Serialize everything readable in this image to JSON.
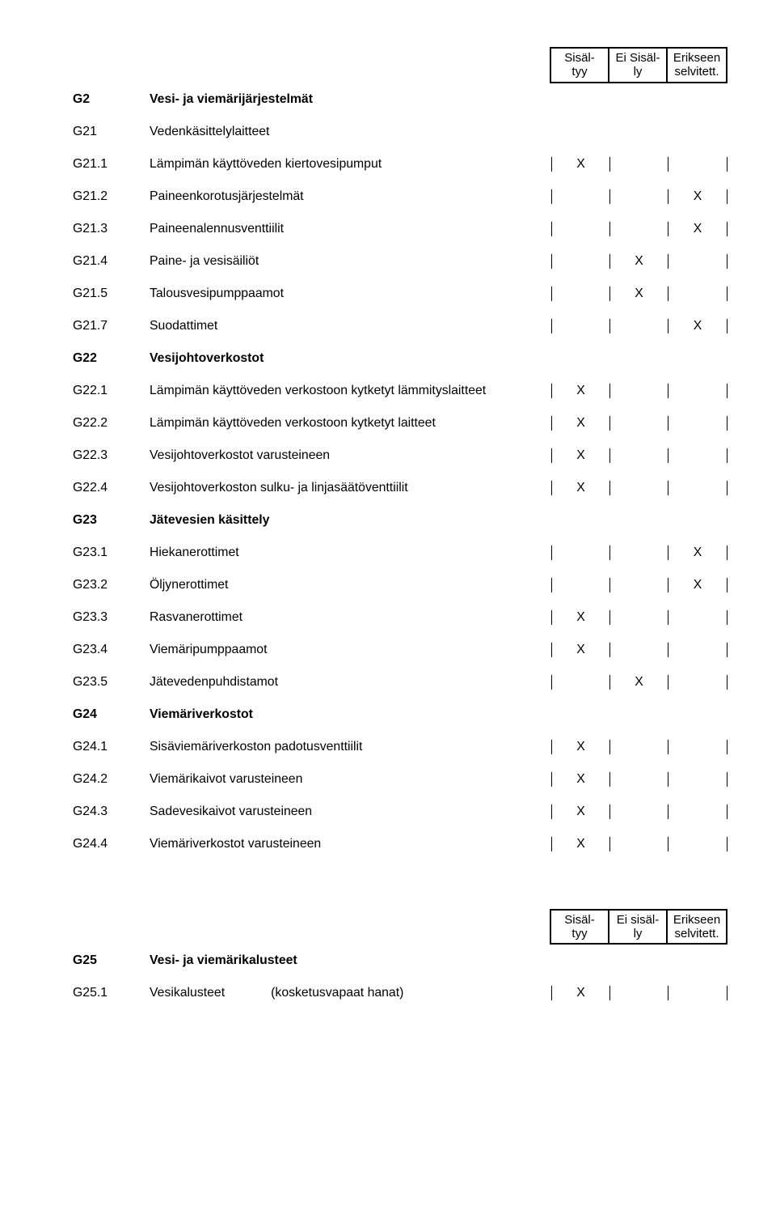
{
  "header": {
    "col1_line1": "Sisäl-",
    "col1_line2": "tyy",
    "col2_line1": "Ei Sisäl-",
    "col2_line2": "ly",
    "col3_line1": "Erikseen",
    "col3_line2": "selvitett."
  },
  "rows": [
    {
      "code": "G2",
      "label": "Vesi- ja viemärijärjestelmät",
      "bold": true,
      "c1": "",
      "c2": "",
      "c3": ""
    },
    {
      "code": "G21",
      "label": "Vedenkäsittelylaitteet",
      "bold": false,
      "c1": "",
      "c2": "",
      "c3": ""
    },
    {
      "code": "G21.1",
      "label": "Lämpimän käyttöveden kiertovesipumput",
      "bold": false,
      "c1": "X",
      "c2": "",
      "c3": ""
    },
    {
      "code": "G21.2",
      "label": "Paineenkorotusjärjestelmät",
      "bold": false,
      "c1": "",
      "c2": "",
      "c3": "X"
    },
    {
      "code": "G21.3",
      "label": "Paineenalennusventtiilit",
      "bold": false,
      "c1": "",
      "c2": "",
      "c3": "X"
    },
    {
      "code": "G21.4",
      "label": "Paine- ja vesisäiliöt",
      "bold": false,
      "c1": "",
      "c2": "X",
      "c3": ""
    },
    {
      "code": "G21.5",
      "label": "Talousvesipumppaamot",
      "bold": false,
      "c1": "",
      "c2": "X",
      "c3": ""
    },
    {
      "code": "G21.7",
      "label": "Suodattimet",
      "bold": false,
      "c1": "",
      "c2": "",
      "c3": "X"
    },
    {
      "code": "G22",
      "label": "Vesijohtoverkostot",
      "bold": true,
      "c1": "",
      "c2": "",
      "c3": ""
    },
    {
      "code": "G22.1",
      "label": "Lämpimän käyttöveden verkostoon kytketyt lämmityslaitteet",
      "bold": false,
      "c1": "X",
      "c2": "",
      "c3": ""
    },
    {
      "code": "G22.2",
      "label": "Lämpimän käyttöveden verkostoon kytketyt laitteet",
      "bold": false,
      "c1": "X",
      "c2": "",
      "c3": ""
    },
    {
      "code": "G22.3",
      "label": "Vesijohtoverkostot varusteineen",
      "bold": false,
      "c1": "X",
      "c2": "",
      "c3": ""
    },
    {
      "code": "G22.4",
      "label": "Vesijohtoverkoston sulku- ja linjasäätöventtiilit",
      "bold": false,
      "c1": "X",
      "c2": "",
      "c3": ""
    },
    {
      "code": "G23",
      "label": "Jätevesien käsittely",
      "bold": true,
      "c1": "",
      "c2": "",
      "c3": ""
    },
    {
      "code": "G23.1",
      "label": "Hiekanerottimet",
      "bold": false,
      "c1": "",
      "c2": "",
      "c3": "X"
    },
    {
      "code": "G23.2",
      "label": "Öljynerottimet",
      "bold": false,
      "c1": "",
      "c2": "",
      "c3": "X"
    },
    {
      "code": "G23.3",
      "label": "Rasvanerottimet",
      "bold": false,
      "c1": "X",
      "c2": "",
      "c3": ""
    },
    {
      "code": "G23.4",
      "label": "Viemäripumppaamot",
      "bold": false,
      "c1": "X",
      "c2": "",
      "c3": ""
    },
    {
      "code": "G23.5",
      "label": "Jätevedenpuhdistamot",
      "bold": false,
      "c1": "",
      "c2": "X",
      "c3": ""
    },
    {
      "code": "G24",
      "label": "Viemäriverkostot",
      "bold": true,
      "c1": "",
      "c2": "",
      "c3": ""
    },
    {
      "code": "G24.1",
      "label": "Sisäviemäriverkoston padotusventtiilit",
      "bold": false,
      "c1": "X",
      "c2": "",
      "c3": ""
    },
    {
      "code": "G24.2",
      "label": "Viemärikaivot varusteineen",
      "bold": false,
      "c1": "X",
      "c2": "",
      "c3": ""
    },
    {
      "code": "G24.3",
      "label": "Sadevesikaivot varusteineen",
      "bold": false,
      "c1": "X",
      "c2": "",
      "c3": ""
    },
    {
      "code": "G24.4",
      "label": "Viemäriverkostot varusteineen",
      "bold": false,
      "c1": "X",
      "c2": "",
      "c3": ""
    }
  ],
  "header2": {
    "col1_line1": "Sisäl-",
    "col1_line2": "tyy",
    "col2_line1": "Ei sisäl-",
    "col2_line2": "ly",
    "col3_line1": "Erikseen",
    "col3_line2": "selvitett."
  },
  "rows2": [
    {
      "code": "G25",
      "label": "Vesi- ja viemärikalusteet",
      "bold": true,
      "c1": "",
      "c2": "",
      "c3": ""
    },
    {
      "code": "G25.1",
      "label": "Vesikalusteet",
      "sublabel": "(kosketusvapaat hanat)",
      "bold": false,
      "c1": "X",
      "c2": "",
      "c3": ""
    }
  ]
}
